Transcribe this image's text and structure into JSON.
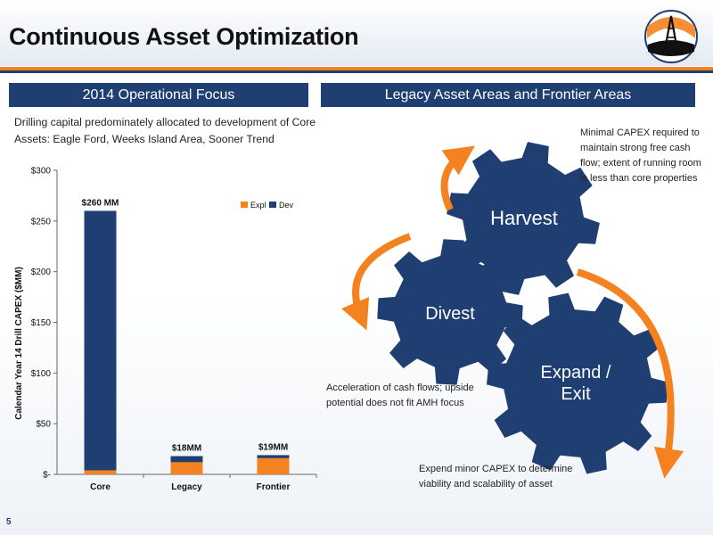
{
  "slide": {
    "title": "Continuous Asset Optimization",
    "page_number": "5"
  },
  "left_panel": {
    "header": "2014 Operational Focus",
    "intro": "Drilling capital predominately allocated to development of Core Assets: Eagle Ford, Weeks Island Area, Sooner Trend"
  },
  "right_panel": {
    "header": "Legacy Asset Areas and Frontier Areas",
    "gears": {
      "harvest": "Harvest",
      "divest": "Divest",
      "expand_line1": "Expand /",
      "expand_line2": "Exit"
    },
    "notes": {
      "harvest": "Minimal CAPEX required to maintain strong free cash flow; extent of running room is less than core properties",
      "divest": "Acceleration of cash flows; upside potential does not fit AMH focus",
      "expand": "Expend minor CAPEX to determine viability and scalability of asset"
    },
    "colors": {
      "gear": "#1f3f73",
      "arrow": "#f58220"
    }
  },
  "chart_data": {
    "type": "bar",
    "stacked": true,
    "categories": [
      "Core",
      "Legacy",
      "Frontier"
    ],
    "series": [
      {
        "name": "Expl",
        "values": [
          4,
          12,
          16
        ],
        "color": "#f58220"
      },
      {
        "name": "Dev",
        "values": [
          256,
          6,
          3
        ],
        "color": "#1f3f73"
      }
    ],
    "data_labels": [
      "$260 MM",
      "$18MM",
      "$19MM"
    ],
    "ylabel": "Calendar Year  14 Drill CAPEX ($MM)",
    "ylim": [
      0,
      300
    ],
    "yticks": [
      0,
      50,
      100,
      150,
      200,
      250,
      300
    ],
    "ytick_labels": [
      "$-",
      "$50",
      "$100",
      "$150",
      "$200",
      "$250",
      "$300"
    ],
    "legend_position": "top-right",
    "grid": false
  }
}
